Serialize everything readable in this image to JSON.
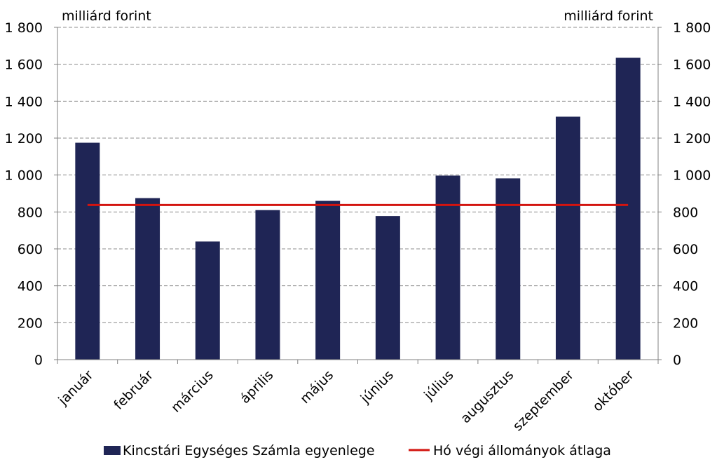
{
  "chart_data": {
    "type": "bar",
    "y_unit_left": "milliárd forint",
    "y_unit_right": "milliárd forint",
    "ylim": [
      0,
      1800
    ],
    "yticks": [
      0,
      200,
      400,
      600,
      800,
      1000,
      1200,
      1400,
      1600,
      1800
    ],
    "ytick_labels": [
      "0",
      "200",
      "400",
      "600",
      "800",
      "1 000",
      "1 200",
      "1 400",
      "1 600",
      "1 800"
    ],
    "grid": "dashed horizontal",
    "categories": [
      "január",
      "február",
      "március",
      "április",
      "május",
      "június",
      "július",
      "augusztus",
      "szeptember",
      "október"
    ],
    "series": [
      {
        "name": "Kincstári Egységes Számla egyenlege",
        "type": "bar",
        "color": "#1f2555",
        "values": [
          1175,
          875,
          640,
          810,
          860,
          778,
          997,
          982,
          1316,
          1635
        ]
      },
      {
        "name": "Hó végi állományok átlaga",
        "type": "line",
        "color": "#d3140f",
        "values": [
          838,
          838,
          838,
          838,
          838,
          838,
          838,
          838,
          838,
          838
        ]
      }
    ],
    "legend_position": "bottom"
  }
}
